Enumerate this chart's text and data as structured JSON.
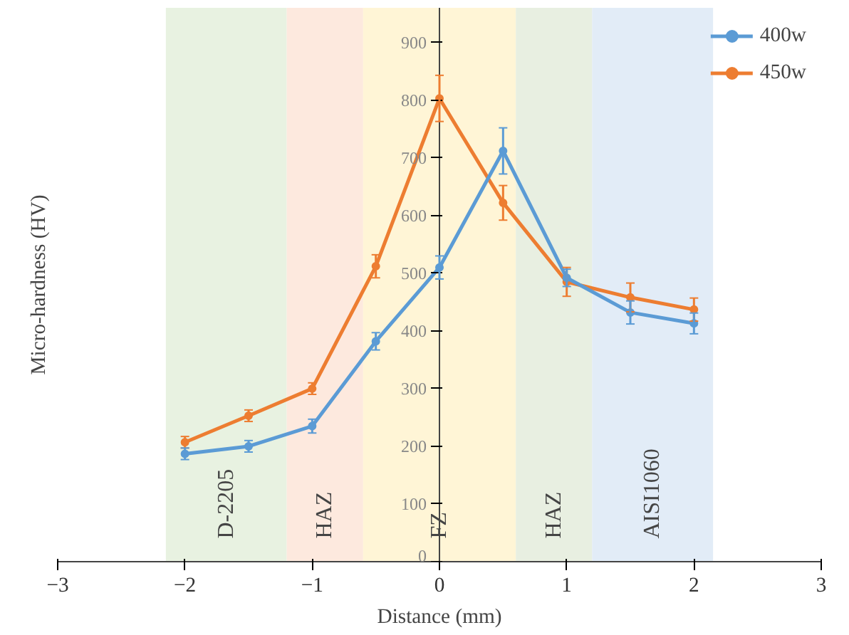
{
  "chart_data": {
    "type": "line",
    "xlabel": "Distance (mm)",
    "ylabel": "Micro-hardness (HV)",
    "x": [
      -2,
      -1.5,
      -1,
      -0.5,
      0,
      0.5,
      1,
      1.5,
      2
    ],
    "series": [
      {
        "name": "400w",
        "color": "#5b9bd5",
        "values": [
          187,
          200,
          235,
          382,
          510,
          712,
          492,
          432,
          413
        ],
        "errors": [
          10,
          10,
          12,
          15,
          20,
          40,
          15,
          20,
          18
        ]
      },
      {
        "name": "450w",
        "color": "#ed7d31",
        "values": [
          207,
          253,
          300,
          512,
          803,
          622,
          485,
          458,
          437
        ],
        "errors": [
          10,
          10,
          10,
          20,
          40,
          30,
          25,
          25,
          20
        ]
      }
    ],
    "bands": [
      {
        "axis": "x",
        "from": -2.15,
        "to": -1.2,
        "label": "D-2205",
        "color": "#e2efda"
      },
      {
        "axis": "x",
        "from": -1.2,
        "to": -0.6,
        "label": "HAZ",
        "color": "#fce4d6"
      },
      {
        "axis": "x",
        "from": -0.6,
        "to": 0.6,
        "label": "FZ",
        "color": "#fff2cc"
      },
      {
        "axis": "x",
        "from": 0.6,
        "to": 1.2,
        "label": "HAZ",
        "color": "#e2ebd9"
      },
      {
        "axis": "x",
        "from": 1.2,
        "to": 2.15,
        "label": "AISI1060",
        "color": "#dbe7f5"
      }
    ],
    "xlim": [
      -3,
      3
    ],
    "xticks": [
      -3,
      -2,
      -1,
      0,
      1,
      2,
      3
    ],
    "ylim": [
      0,
      960
    ],
    "yticks": [
      0,
      100,
      200,
      300,
      400,
      500,
      600,
      700,
      800,
      900
    ],
    "marker": "circle",
    "line_style": "solid",
    "grid": false,
    "legend": "top right"
  }
}
